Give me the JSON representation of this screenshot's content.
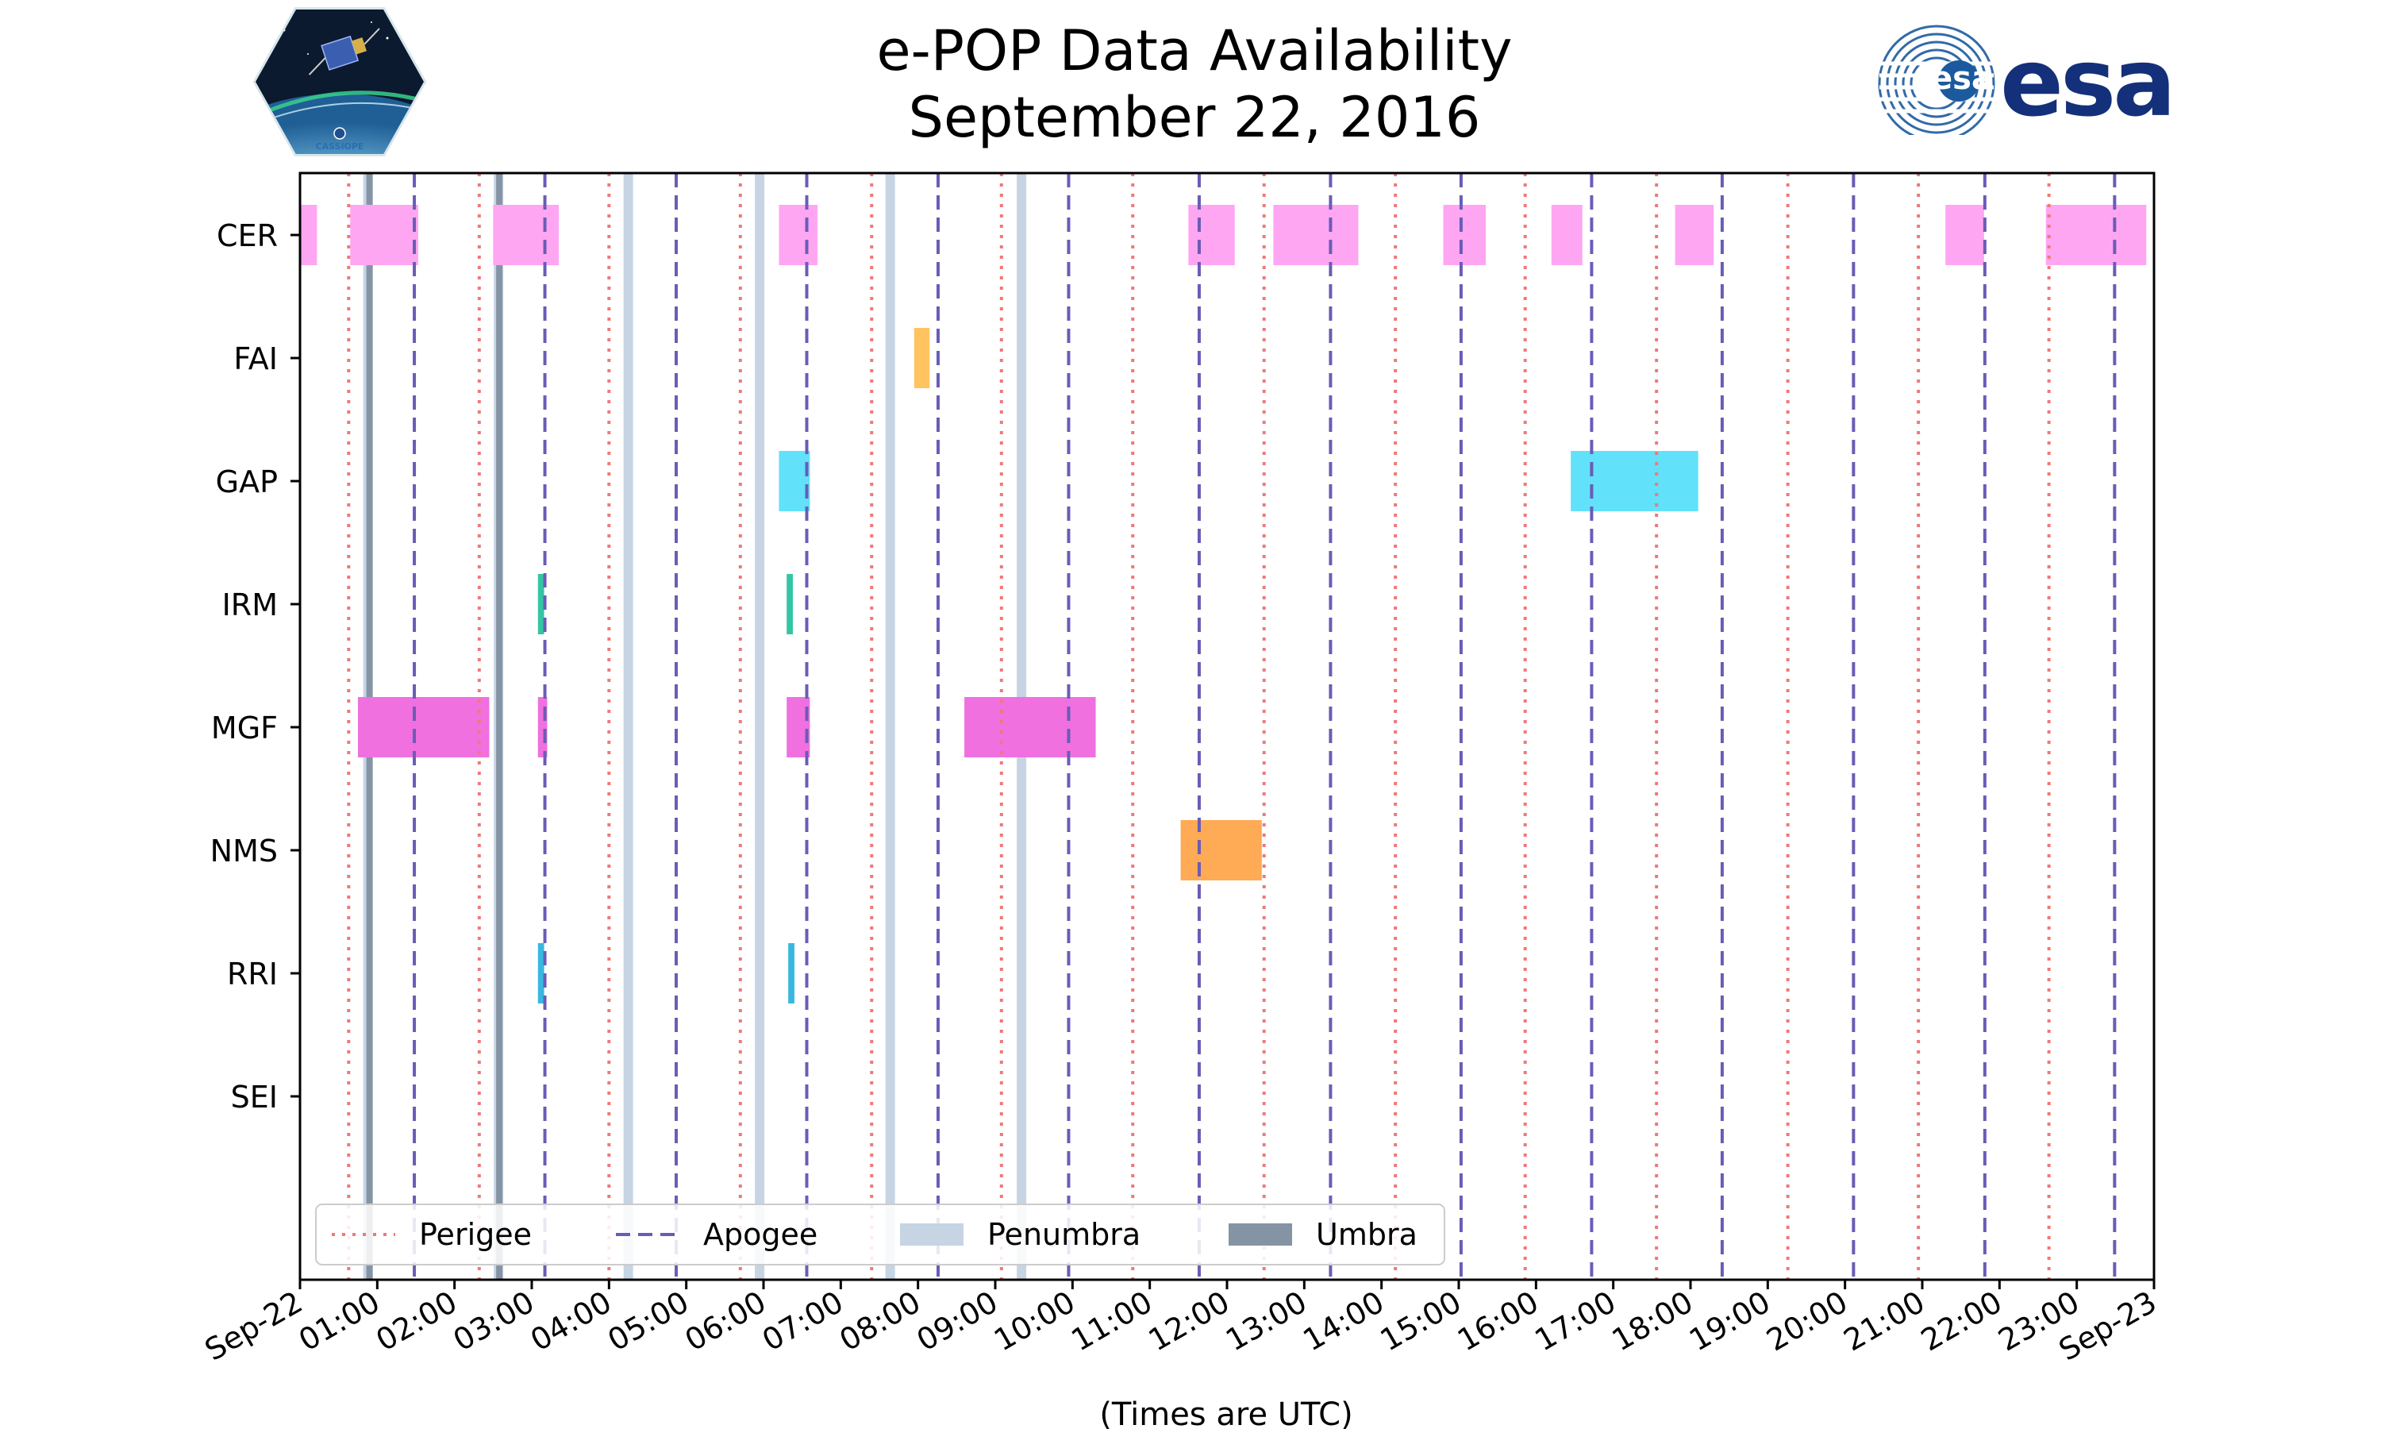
{
  "chart_data": {
    "type": "timeline",
    "title": "e-POP Data Availability",
    "subtitle": "September 22, 2016",
    "xlabel": "(Times are UTC)",
    "xlim_hours": [
      0,
      24
    ],
    "x_tick_labels": [
      "Sep-22",
      "01:00",
      "02:00",
      "03:00",
      "04:00",
      "05:00",
      "06:00",
      "07:00",
      "08:00",
      "09:00",
      "10:00",
      "11:00",
      "12:00",
      "13:00",
      "14:00",
      "15:00",
      "16:00",
      "17:00",
      "18:00",
      "19:00",
      "20:00",
      "21:00",
      "22:00",
      "23:00",
      "Sep-23"
    ],
    "instruments": [
      "CER",
      "FAI",
      "GAP",
      "IRM",
      "MGF",
      "NMS",
      "RRI",
      "SEI"
    ],
    "colors": {
      "CER": "#ffa6f3",
      "FAI": "#ffc35f",
      "GAP": "#62e1fa",
      "IRM": "#34c5a4",
      "MGF": "#f070e0",
      "NMS": "#ffaa55",
      "RRI": "#38b8e0",
      "SEI": "#999999",
      "perigee": "#f07878",
      "apogee": "#6a5cb6",
      "penumbra": "#c6d4e4",
      "umbra": "#8594a4"
    },
    "availability": [
      {
        "instrument": "CER",
        "intervals": [
          [
            0.0,
            0.22
          ],
          [
            0.65,
            1.53
          ],
          [
            2.5,
            3.35
          ],
          [
            6.2,
            6.7
          ],
          [
            11.5,
            12.1
          ],
          [
            12.6,
            13.7
          ],
          [
            14.8,
            15.35
          ],
          [
            16.2,
            16.6
          ],
          [
            17.8,
            18.3
          ],
          [
            21.3,
            21.8
          ],
          [
            22.6,
            23.9
          ]
        ]
      },
      {
        "instrument": "FAI",
        "intervals": [
          [
            7.95,
            8.15
          ]
        ]
      },
      {
        "instrument": "GAP",
        "intervals": [
          [
            6.2,
            6.6
          ],
          [
            16.45,
            18.1
          ]
        ]
      },
      {
        "instrument": "IRM",
        "intervals": [
          [
            3.08,
            3.16
          ],
          [
            6.3,
            6.38
          ]
        ]
      },
      {
        "instrument": "MGF",
        "intervals": [
          [
            0.75,
            2.45
          ],
          [
            3.08,
            3.2
          ],
          [
            6.3,
            6.6
          ],
          [
            8.6,
            10.3
          ]
        ]
      },
      {
        "instrument": "NMS",
        "intervals": [
          [
            11.4,
            12.45
          ]
        ]
      },
      {
        "instrument": "RRI",
        "intervals": [
          [
            3.08,
            3.16
          ],
          [
            6.32,
            6.4
          ]
        ]
      },
      {
        "instrument": "SEI",
        "intervals": []
      }
    ],
    "perigee_hours": [
      0.63,
      2.32,
      4.0,
      5.7,
      7.4,
      9.08,
      10.78,
      12.48,
      14.18,
      15.86,
      17.56,
      19.26,
      20.95,
      22.64
    ],
    "apogee_hours": [
      1.48,
      3.17,
      4.87,
      6.56,
      8.26,
      9.95,
      11.64,
      13.34,
      15.03,
      16.72,
      18.41,
      20.11,
      21.81,
      23.49
    ],
    "penumbra_hours": [
      0.88,
      2.57,
      4.25,
      5.95,
      7.64,
      9.34
    ],
    "umbra_hours": [
      0.9,
      2.58
    ],
    "legend": {
      "position": "lower-left",
      "entries": [
        {
          "label": "Perigee",
          "style": "perigee"
        },
        {
          "label": "Apogee",
          "style": "apogee"
        },
        {
          "label": "Penumbra",
          "style": "penumbra"
        },
        {
          "label": "Umbra",
          "style": "umbra"
        }
      ]
    }
  },
  "logos": {
    "mission_text": "CASSIOPE",
    "agency_text": "esa"
  }
}
